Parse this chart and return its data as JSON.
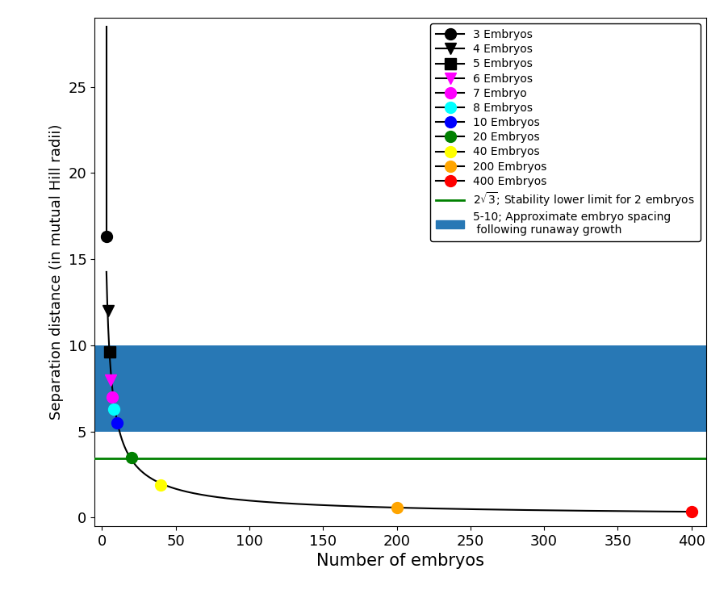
{
  "embryo_counts": [
    3,
    4,
    5,
    6,
    7,
    8,
    10,
    20,
    40,
    200,
    400
  ],
  "separation_values": [
    16.3,
    12.0,
    9.6,
    8.0,
    7.0,
    6.3,
    5.5,
    3.5,
    1.9,
    0.6,
    0.35
  ],
  "colors": [
    "black",
    "black",
    "black",
    "magenta",
    "magenta",
    "cyan",
    "blue",
    "green",
    "yellow",
    "orange",
    "red"
  ],
  "markers": [
    "o",
    "v",
    "s",
    "v",
    "o",
    "o",
    "o",
    "o",
    "o",
    "o",
    "o"
  ],
  "marker_edgecolors": [
    "black",
    "black",
    "black",
    "magenta",
    "magenta",
    "cyan",
    "blue",
    "green",
    "yellow",
    "orange",
    "red"
  ],
  "legend_labels": [
    "3 Embryos",
    "4 Embryos",
    "5 Embryos",
    "6 Embryos",
    "7 Embryo",
    "8 Embryos",
    "10 Embryos",
    "20 Embryos",
    "40 Embryos",
    "200 Embryos",
    "400 Embryos"
  ],
  "green_line_y": 3.46,
  "green_line_label": "$2\\sqrt{3}$; Stability lower limit for 2 embryos",
  "blue_rect_ymin": 5.0,
  "blue_rect_ymax": 10.0,
  "blue_rect_label": "5-10; Approximate embryo spacing\n following runaway growth",
  "blue_rect_color": "#2878b5",
  "xlabel": "Number of embryos",
  "ylabel": "Separation distance (in mutual Hill radii)",
  "xlim": [
    -5,
    410
  ],
  "ylim": [
    -0.5,
    29
  ],
  "curve_color": "black",
  "curve_lw": 1.5,
  "vertical_line_x": 3,
  "vertical_line_ymin": 16.3,
  "vertical_line_ymax": 28.5,
  "marker_size": 10,
  "legend_fontsize": 10,
  "xlabel_fontsize": 15,
  "ylabel_fontsize": 13,
  "tick_labelsize": 13
}
